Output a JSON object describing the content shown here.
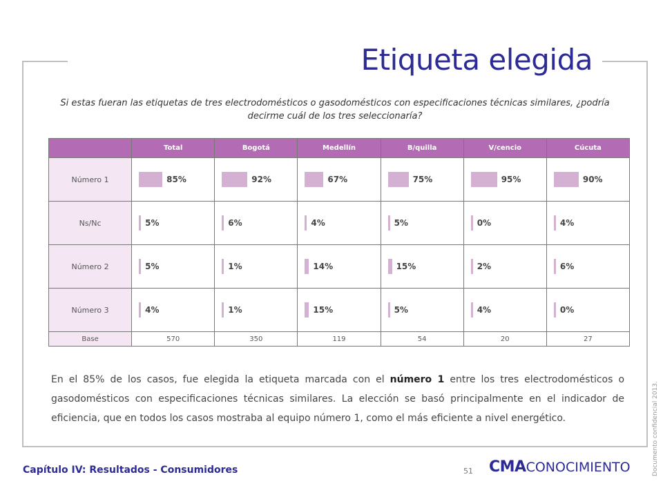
{
  "title": "Etiqueta elegida",
  "question": "Si estas fueran las etiquetas de tres electrodomésticos o gasodomésticos con especificaciones técnicas similares, ¿podría decirme cuál de los tres seleccionaría?",
  "table": {
    "columns": [
      "Total",
      "Bogotá",
      "Medellín",
      "B/quilla",
      "V/cencio",
      "Cúcuta"
    ],
    "rows": [
      {
        "label": "Número 1",
        "values": [
          85,
          92,
          67,
          75,
          95,
          90
        ],
        "labels": [
          "85%",
          "92%",
          "67%",
          "75%",
          "95%",
          "90%"
        ]
      },
      {
        "label": "Ns/Nc",
        "values": [
          5,
          6,
          4,
          5,
          0,
          4
        ],
        "labels": [
          "5%",
          "6%",
          "4%",
          "5%",
          "0%",
          "4%"
        ]
      },
      {
        "label": "Número 2",
        "values": [
          5,
          1,
          14,
          15,
          2,
          6
        ],
        "labels": [
          "5%",
          "1%",
          "14%",
          "15%",
          "2%",
          "6%"
        ]
      },
      {
        "label": "Número 3",
        "values": [
          4,
          1,
          15,
          5,
          4,
          0
        ],
        "labels": [
          "4%",
          "1%",
          "15%",
          "5%",
          "4%",
          "0%"
        ]
      }
    ],
    "base_label": "Base",
    "base": [
      "570",
      "350",
      "119",
      "54",
      "20",
      "27"
    ]
  },
  "body": {
    "before": "En el 85% de los casos, fue elegida la etiqueta marcada con el ",
    "bold": "número 1",
    "after": " entre los tres electrodomésticos o gasodomésticos con especificaciones técnicas similares. La elección se basó principalmente en el indicador de eficiencia, que en todos los casos mostraba al equipo número 1, como el más eficiente a nivel energético."
  },
  "side_note": "Documento confidencial 2013.",
  "chapter": "Capítulo IV: Resultados - Consumidores",
  "page_number": "51",
  "logo": {
    "strong": "CMA",
    "light": "CONOCIMIENTO"
  },
  "colors": {
    "accent": "#2c2a94",
    "header": "#b36cb4",
    "bar": "#d4b0d3",
    "label_bg": "#f4e6f3"
  }
}
